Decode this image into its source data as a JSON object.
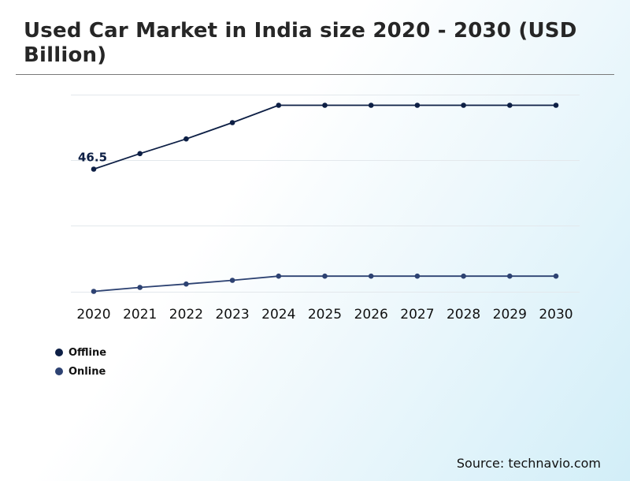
{
  "chart_data": {
    "type": "line",
    "title": "Used Car Market in India size 2020 - 2030 (USD Billion)",
    "categories": [
      "2020",
      "2021",
      "2022",
      "2023",
      "2024",
      "2025",
      "2026",
      "2027",
      "2028",
      "2029",
      "2030"
    ],
    "series": [
      {
        "name": "Offline",
        "color": "#0d1f45",
        "values": [
          46.5,
          52.4,
          58.0,
          64.2,
          70.8,
          70.8,
          70.8,
          70.8,
          70.8,
          70.8,
          70.8
        ]
      },
      {
        "name": "Online",
        "color": "#2d4272",
        "values": [
          0.0,
          1.5,
          2.8,
          4.2,
          5.8,
          5.8,
          5.8,
          5.8,
          5.8,
          5.8,
          5.8
        ]
      }
    ],
    "data_labels": [
      {
        "series": "Offline",
        "category": "2020",
        "text": "46.5"
      }
    ],
    "ylim": [
      0,
      75
    ],
    "gridlines": [
      0,
      25,
      50,
      75
    ],
    "grid": true,
    "legend_position": "bottom-left",
    "xlabel": "",
    "ylabel": ""
  },
  "source": "Source: technavio.com"
}
